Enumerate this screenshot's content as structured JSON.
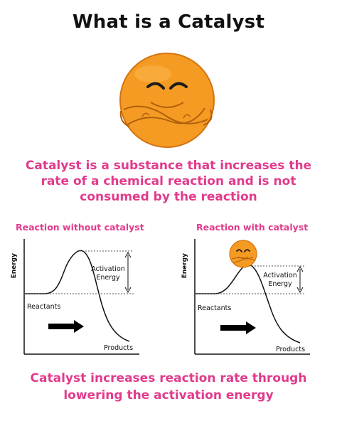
{
  "title": "What is a Catalyst",
  "definition": "Catalyst is a substance that increases the rate of a chemical reaction and is not consumed by the reaction",
  "conclusion": "Catalyst increases reaction rate through lowering the activation energy",
  "colors": {
    "accent": "#e23a8c",
    "mascot_orange": "#f59b23",
    "mascot_outline": "#d27410",
    "text": "#111111"
  },
  "diagrams": [
    {
      "heading": "Reaction without catalyst",
      "y_axis_label": "Energy",
      "activation_label_line1": "Activation",
      "activation_label_line2": "Energy",
      "reactants_label": "Reactants",
      "products_label": "Products"
    },
    {
      "heading": "Reaction with catalyst",
      "y_axis_label": "Energy",
      "activation_label_line1": "Activation",
      "activation_label_line2": "Energy",
      "reactants_label": "Reactants",
      "products_label": "Products"
    }
  ]
}
